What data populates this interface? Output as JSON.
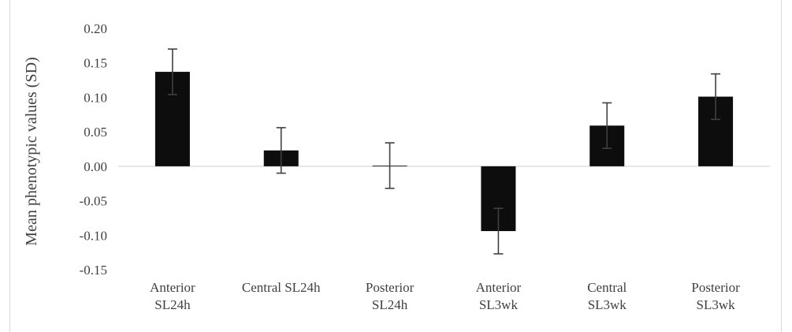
{
  "chart_data": {
    "type": "bar",
    "title": "",
    "xlabel": "",
    "ylabel": "Mean phenotypic values (SD)",
    "categories": [
      [
        "Anterior",
        "SL24h"
      ],
      [
        "Central SL24h"
      ],
      [
        "Posterior",
        "SL24h"
      ],
      [
        "Anterior",
        "SL3wk"
      ],
      [
        "Central",
        "SL3wk"
      ],
      [
        "Posterior",
        "SL3wk"
      ]
    ],
    "values": [
      0.137,
      0.023,
      0.001,
      -0.094,
      0.059,
      0.101
    ],
    "error": [
      0.033,
      0.033,
      0.033,
      0.033,
      0.033,
      0.033
    ],
    "ylim": [
      -0.15,
      0.2
    ],
    "yticks": [
      0.2,
      0.15,
      0.1,
      0.05,
      0.0,
      -0.05,
      -0.1,
      -0.15
    ],
    "ytick_labels": [
      "0.20",
      "0.15",
      "0.10",
      "0.05",
      "0.00",
      "-0.05",
      "-0.10",
      "-0.15"
    ],
    "grid": false,
    "legend": "none",
    "colors": {
      "bar": "#0d0d0d",
      "error_bar": "#404040",
      "zero_line": "#d9d9d9",
      "text": "#404040"
    }
  }
}
